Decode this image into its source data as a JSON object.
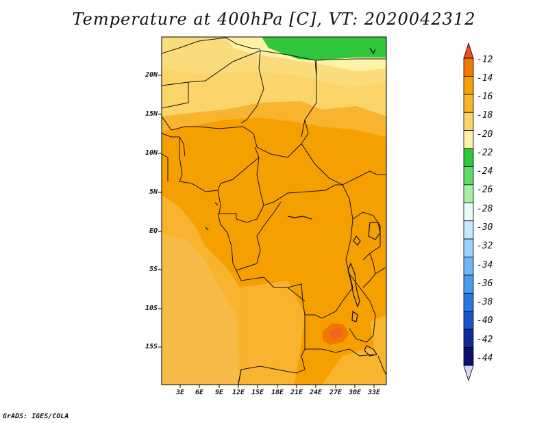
{
  "title": "Temperature at 400hPa [C], VT: 2020042312",
  "footer": "GrADS: IGES/COLA",
  "map": {
    "lat_labels": [
      "20N",
      "15N",
      "10N",
      "5N",
      "EQ",
      "5S",
      "10S",
      "15S"
    ],
    "lon_labels": [
      "3E",
      "6E",
      "9E",
      "12E",
      "15E",
      "18E",
      "21E",
      "24E",
      "27E",
      "30E",
      "33E"
    ]
  },
  "colorbar": {
    "labels": [
      "-12",
      "-14",
      "-16",
      "-18",
      "-20",
      "-22",
      "-24",
      "-26",
      "-28",
      "-30",
      "-32",
      "-34",
      "-36",
      "-38",
      "-40",
      "-42",
      "-44"
    ],
    "colors": [
      "#f04a1e",
      "#f07800",
      "#f5a000",
      "#f8b42e",
      "#fbd56a",
      "#fef2a8",
      "#2fc73c",
      "#5fdc68",
      "#a4eea6",
      "#e4fbf8",
      "#c5e8fd",
      "#9ad2fb",
      "#70b8f5",
      "#4a9bf0",
      "#2978e2",
      "#1a54c8",
      "#0f2b9b",
      "#0a0f6e",
      "#d8d8f5"
    ]
  }
}
